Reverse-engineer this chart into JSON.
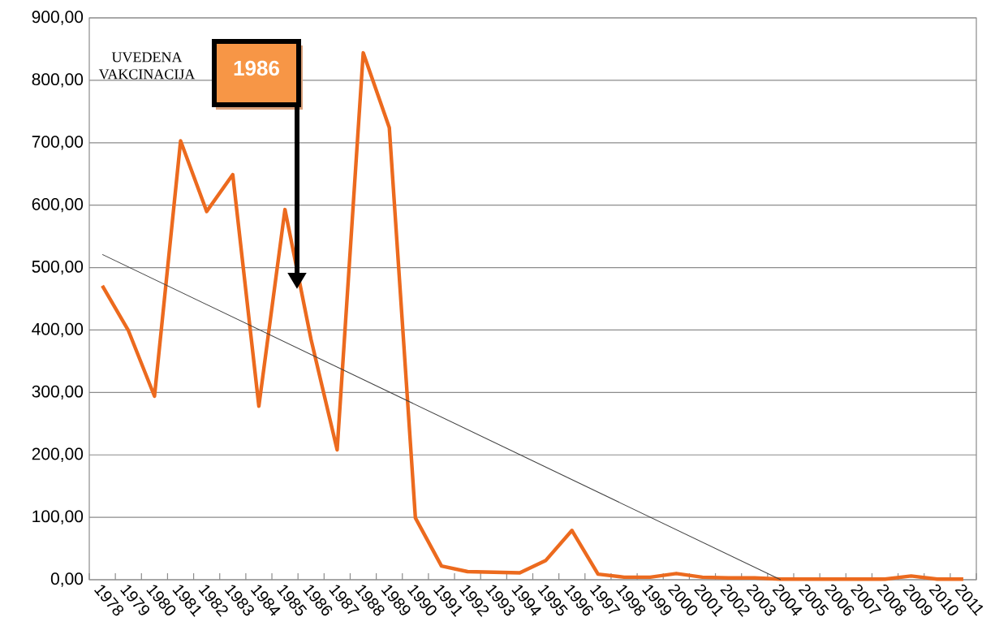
{
  "chart_data": {
    "type": "line",
    "categories": [
      "1978",
      "1979",
      "1980",
      "1981",
      "1982",
      "1983",
      "1984",
      "1985",
      "1986",
      "1987",
      "1988",
      "1989",
      "1990",
      "1991",
      "1992",
      "1993",
      "1994",
      "1995",
      "1996",
      "1997",
      "1998",
      "1999",
      "2000",
      "2001",
      "2002",
      "2003",
      "2004",
      "2005",
      "2006",
      "2007",
      "2008",
      "2009",
      "2010",
      "2011"
    ],
    "series": [
      {
        "color": "#ec6a1e",
        "values": [
          471,
          399,
          294,
          703,
          590,
          649,
          278,
          593,
          385,
          208,
          844,
          724,
          99,
          22,
          13,
          12,
          11,
          31,
          79,
          9,
          4,
          4,
          10,
          4,
          3,
          3,
          1,
          1,
          1,
          1,
          1,
          6,
          1,
          1
        ]
      },
      {
        "type": "line",
        "color": "#404040",
        "values": [
          521,
          null,
          null,
          null,
          null,
          null,
          null,
          null,
          null,
          null,
          null,
          null,
          null,
          null,
          null,
          null,
          null,
          null,
          null,
          null,
          null,
          null,
          null,
          null,
          null,
          null,
          0,
          null,
          null,
          null,
          null,
          null,
          null,
          null
        ]
      }
    ],
    "ylim": [
      0,
      900
    ],
    "yticks": [
      {
        "value": 0,
        "label": "0,00"
      },
      {
        "value": 100,
        "label": "100,00"
      },
      {
        "value": 200,
        "label": "200,00"
      },
      {
        "value": 300,
        "label": "300,00"
      },
      {
        "value": 400,
        "label": "400,00"
      },
      {
        "value": 500,
        "label": "500,00"
      },
      {
        "value": 600,
        "label": "600,00"
      },
      {
        "value": 700,
        "label": "700,00"
      },
      {
        "value": 800,
        "label": "800,00"
      },
      {
        "value": 900,
        "label": "900,00"
      }
    ],
    "grid": "y",
    "marker": "none",
    "annotations": [
      "UVEDENA VAKCINACIJA",
      "1986"
    ]
  }
}
